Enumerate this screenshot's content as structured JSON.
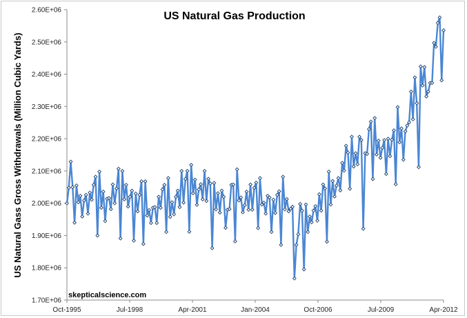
{
  "chart_data": {
    "type": "line",
    "title": "US Natural Gas Production",
    "xlabel": "",
    "ylabel": "US Natural Gass Gross Withdrawals (Million Cubic Yards)",
    "watermark": "skepticalscience.com",
    "x_start": "Oct-1995",
    "x_end": "Apr-2012",
    "x_interval": "monthly",
    "x_tick_labels": [
      "Oct-1995",
      "Jul-1998",
      "Apr-2001",
      "Jan-2004",
      "Oct-2006",
      "Jul-2009",
      "Apr-2012"
    ],
    "y_tick_labels": [
      "1.70E+06",
      "1.80E+06",
      "1.90E+06",
      "2.00E+06",
      "2.10E+06",
      "2.20E+06",
      "2.30E+06",
      "2.40E+06",
      "2.50E+06",
      "2.60E+06"
    ],
    "ylim": [
      1700000,
      2600000
    ],
    "grid": false,
    "legend": "none",
    "series": [
      {
        "name": "US Natural Gas Gross Withdrawals",
        "color": "#4a86d4",
        "marker": "diamond",
        "values": [
          2000000,
          2048000,
          2129000,
          2050000,
          1940000,
          2055000,
          2003000,
          2023000,
          1959000,
          2009000,
          2026000,
          1968000,
          2033000,
          2011000,
          2057000,
          2082000,
          1900000,
          2098000,
          1986000,
          2036000,
          1945000,
          2014000,
          2016000,
          1982000,
          2058000,
          2000000,
          2046000,
          2107000,
          1891000,
          2100000,
          2012000,
          2057000,
          1990000,
          2020000,
          2039000,
          1884000,
          2030000,
          1975000,
          2026000,
          2068000,
          1874000,
          2068000,
          1962000,
          1979000,
          1939000,
          1986000,
          1988000,
          1939000,
          2020000,
          1986000,
          2043000,
          2057000,
          1911000,
          2078000,
          1958000,
          2003000,
          1966000,
          2020000,
          2039000,
          1988000,
          2100000,
          2002000,
          2075000,
          2100000,
          1912000,
          2119000,
          2031000,
          2073000,
          1995000,
          2043000,
          2059000,
          2012000,
          2100000,
          2007000,
          2076000,
          2061000,
          1861000,
          2063000,
          1981000,
          2031000,
          1971000,
          2039000,
          2020000,
          1924000,
          1980000,
          1982000,
          2057000,
          2058000,
          1882000,
          2105000,
          2009000,
          2018000,
          1972000,
          1994000,
          2036000,
          1980000,
          2058000,
          1980000,
          2048000,
          2064000,
          1923000,
          2078000,
          1996000,
          2002000,
          1968000,
          2023000,
          2018000,
          1911000,
          2011000,
          1970000,
          2026000,
          2037000,
          1871000,
          2082000,
          1981000,
          2013000,
          1975000,
          1983000,
          1989000,
          1767000,
          1871000,
          1904000,
          1998000,
          1977000,
          1795000,
          1996000,
          1911000,
          1959000,
          1941000,
          1977000,
          1991000,
          1946000,
          2028000,
          1977000,
          2058000,
          2046000,
          1881000,
          2098000,
          1996000,
          2069000,
          2021000,
          2055000,
          2078000,
          2040000,
          2125000,
          2101000,
          2178000,
          2157000,
          2045000,
          2206000,
          2114000,
          2155000,
          2121000,
          2206000,
          2196000,
          1921000,
          2155000,
          2153000,
          2230000,
          2253000,
          2075000,
          2264000,
          2151000,
          2194000,
          2141000,
          2172000,
          2196000,
          2091000,
          2200000,
          2146000,
          2197000,
          2226000,
          2059000,
          2298000,
          2189000,
          2232000,
          2135000,
          2223000,
          2241000,
          2251000,
          2346000,
          2260000,
          2390000,
          2310000,
          2112000,
          2424000,
          2365000,
          2422000,
          2331000,
          2346000,
          2373000,
          2373000,
          2497000,
          2485000,
          2559000,
          2576000,
          2381000,
          2536000
        ]
      }
    ]
  }
}
